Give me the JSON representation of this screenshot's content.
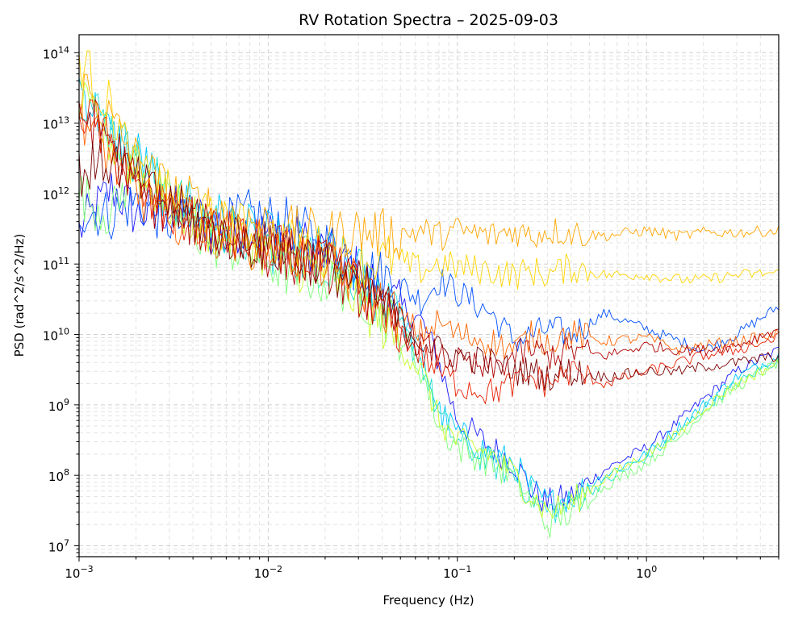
{
  "chart_data": {
    "type": "line",
    "title": "RV Rotation Spectra – 2025-09-03",
    "xlabel": "Frequency (Hz)",
    "ylabel": "PSD (rad^2/s^2/Hz)",
    "xscale": "log",
    "yscale": "log",
    "xlim": [
      0.001,
      5
    ],
    "ylim": [
      7000000,
      180000000000000
    ],
    "grid": "major and minor, dashed, light gray",
    "legend": "none",
    "x_ticks": [
      {
        "value": 0.001,
        "base": "10",
        "exp": "−3"
      },
      {
        "value": 0.01,
        "base": "10",
        "exp": "−2"
      },
      {
        "value": 0.1,
        "base": "10",
        "exp": "−1"
      },
      {
        "value": 1,
        "base": "10",
        "exp": "0"
      }
    ],
    "y_ticks": [
      {
        "value": 10000000,
        "base": "10",
        "exp": "7"
      },
      {
        "value": 100000000,
        "base": "10",
        "exp": "8"
      },
      {
        "value": 1000000000,
        "base": "10",
        "exp": "9"
      },
      {
        "value": 10000000000,
        "base": "10",
        "exp": "10"
      },
      {
        "value": 100000000000,
        "base": "10",
        "exp": "11"
      },
      {
        "value": 1000000000000,
        "base": "10",
        "exp": "12"
      },
      {
        "value": 10000000000000,
        "base": "10",
        "exp": "13"
      },
      {
        "value": 100000000000000,
        "base": "10",
        "exp": "14"
      }
    ],
    "x": [
      0.001,
      0.0015,
      0.002,
      0.003,
      0.005,
      0.008,
      0.012,
      0.02,
      0.03,
      0.045,
      0.065,
      0.08,
      0.1,
      0.15,
      0.2,
      0.25,
      0.3,
      0.4,
      0.6,
      1.0,
      1.5,
      2.0,
      3.0,
      5.0
    ],
    "series": [
      {
        "color": "#1a1aff",
        "values": [
          300000000000.0,
          1200000000000.0,
          500000000000.0,
          600000000000.0,
          400000000000.0,
          300000000000.0,
          250000000000.0,
          150000000000.0,
          80000000000.0,
          30000000000.0,
          15000000000.0,
          4000000000.0,
          600000000.0,
          250000000.0,
          150000000.0,
          60000000.0,
          40000000.0,
          50000000.0,
          120000000.0,
          250000000.0,
          600000000.0,
          1200000000.0,
          3000000000.0,
          6000000000.0
        ]
      },
      {
        "color": "#0050ff",
        "values": [
          600000000000.0,
          500000000000.0,
          800000000000.0,
          400000000000.0,
          300000000000.0,
          500000000000.0,
          400000000000.0,
          200000000000.0,
          100000000000.0,
          60000000000.0,
          30000000000.0,
          60000000000.0,
          40000000000.0,
          20000000000.0,
          8000000000.0,
          10000000000.0,
          12000000000.0,
          10000000000.0,
          20000000000.0,
          12000000000.0,
          8000000000.0,
          6000000000.0,
          10000000000.0,
          25000000000.0
        ]
      },
      {
        "color": "#00c8ff",
        "values": [
          35000000000000.0,
          6000000000000.0,
          4000000000000.0,
          800000000000.0,
          500000000000.0,
          300000000000.0,
          200000000000.0,
          150000000000.0,
          80000000000.0,
          30000000000.0,
          5000000000.0,
          800000000.0,
          400000000.0,
          200000000.0,
          150000000.0,
          60000000.0,
          40000000.0,
          50000000.0,
          100000000.0,
          200000000.0,
          500000000.0,
          1000000000.0,
          2500000000.0,
          5000000000.0
        ]
      },
      {
        "color": "#20e0d0",
        "values": [
          30000000000000.0,
          8000000000000.0,
          3000000000000.0,
          1000000000000.0,
          400000000000.0,
          200000000000.0,
          150000000000.0,
          100000000000.0,
          60000000000.0,
          20000000000.0,
          4000000000.0,
          700000000.0,
          300000000.0,
          150000000.0,
          100000000.0,
          50000000.0,
          30000000.0,
          40000000.0,
          80000000.0,
          180000000.0,
          400000000.0,
          900000000.0,
          2000000000.0,
          4500000000.0
        ]
      },
      {
        "color": "#7dff7a",
        "values": [
          1000000000000.0,
          500000000000.0,
          3000000000000.0,
          600000000000.0,
          200000000000.0,
          150000000000.0,
          80000000000.0,
          60000000000.0,
          40000000000.0,
          15000000000.0,
          3000000000.0,
          500000000.0,
          250000000.0,
          150000000.0,
          90000000.0,
          40000000.0,
          20000000.0,
          30000000.0,
          70000000.0,
          150000000.0,
          350000000.0,
          800000000.0,
          1800000000.0,
          4000000000.0
        ]
      },
      {
        "color": "#c8ff2a",
        "values": [
          20000000000000.0,
          5000000000000.0,
          2000000000000.0,
          700000000000.0,
          300000000000.0,
          200000000000.0,
          100000000000.0,
          80000000000.0,
          30000000000.0,
          10000000000.0,
          3000000000.0,
          600000000.0,
          300000000.0,
          200000000.0,
          100000000.0,
          50000000.0,
          30000000.0,
          40000000.0,
          90000000.0,
          200000000.0,
          400000000.0,
          900000000.0,
          2000000000.0,
          4000000000.0
        ]
      },
      {
        "color": "#ffd400",
        "values": [
          85000000000000.0,
          15000000000000.0,
          2000000000000.0,
          900000000000.0,
          400000000000.0,
          300000000000.0,
          200000000000.0,
          150000000000.0,
          100000000000.0,
          120000000000.0,
          80000000000.0,
          100000000000.0,
          90000000000.0,
          80000000000.0,
          70000000000.0,
          80000000000.0,
          70000000000.0,
          90000000000.0,
          70000000000.0,
          70000000000.0,
          60000000000.0,
          60000000000.0,
          70000000000.0,
          75000000000.0
        ]
      },
      {
        "color": "#ffa500",
        "values": [
          40000000000000.0,
          10000000000000.0,
          3000000000000.0,
          1000000000000.0,
          600000000000.0,
          400000000000.0,
          300000000000.0,
          250000000000.0,
          300000000000.0,
          250000000000.0,
          300000000000.0,
          250000000000.0,
          300000000000.0,
          250000000000.0,
          300000000000.0,
          250000000000.0,
          300000000000.0,
          280000000000.0,
          250000000000.0,
          300000000000.0,
          250000000000.0,
          280000000000.0,
          280000000000.0,
          300000000000.0
        ]
      },
      {
        "color": "#ff6400",
        "values": [
          15000000000000.0,
          3000000000000.0,
          1000000000000.0,
          500000000000.0,
          300000000000.0,
          200000000000.0,
          150000000000.0,
          100000000000.0,
          50000000000.0,
          20000000000.0,
          10000000000.0,
          15000000000.0,
          10000000000.0,
          8000000000.0,
          6000000000.0,
          10000000000.0,
          8000000000.0,
          10000000000.0,
          8000000000.0,
          9000000000.0,
          6000000000.0,
          7000000000.0,
          8000000000.0,
          10000000000.0
        ]
      },
      {
        "color": "#e81e00",
        "values": [
          18000000000000.0,
          4000000000000.0,
          1000000000000.0,
          500000000000.0,
          300000000000.0,
          200000000000.0,
          150000000000.0,
          100000000000.0,
          50000000000.0,
          15000000000.0,
          5000000000.0,
          3000000000.0,
          2000000000.0,
          1500000000.0,
          2000000000.0,
          2500000000.0,
          2000000000.0,
          3000000000.0,
          2000000000.0,
          3000000000.0,
          4000000000.0,
          5000000000.0,
          6000000000.0,
          9000000000.0
        ]
      },
      {
        "color": "#b00000",
        "values": [
          15000000000000.0,
          6000000000000.0,
          1200000000000.0,
          500000000000.0,
          300000000000.0,
          200000000000.0,
          120000000000.0,
          100000000000.0,
          40000000000.0,
          15000000000.0,
          7000000000.0,
          5000000000.0,
          4000000000.0,
          3000000000.0,
          5000000000.0,
          6000000000.0,
          5000000000.0,
          6000000000.0,
          5000000000.0,
          7000000000.0,
          6000000000.0,
          6000000000.0,
          7000000000.0,
          12000000000.0
        ]
      },
      {
        "color": "#7a0000",
        "values": [
          2000000000000.0,
          3000000000000.0,
          1500000000000.0,
          700000000000.0,
          300000000000.0,
          200000000000.0,
          150000000000.0,
          100000000000.0,
          50000000000.0,
          20000000000.0,
          8000000000.0,
          6000000000.0,
          5000000000.0,
          4000000000.0,
          3000000000.0,
          3000000000.0,
          2500000000.0,
          3000000000.0,
          2500000000.0,
          3000000000.0,
          3000000000.0,
          3500000000.0,
          4000000000.0,
          5000000000.0
        ]
      }
    ]
  }
}
